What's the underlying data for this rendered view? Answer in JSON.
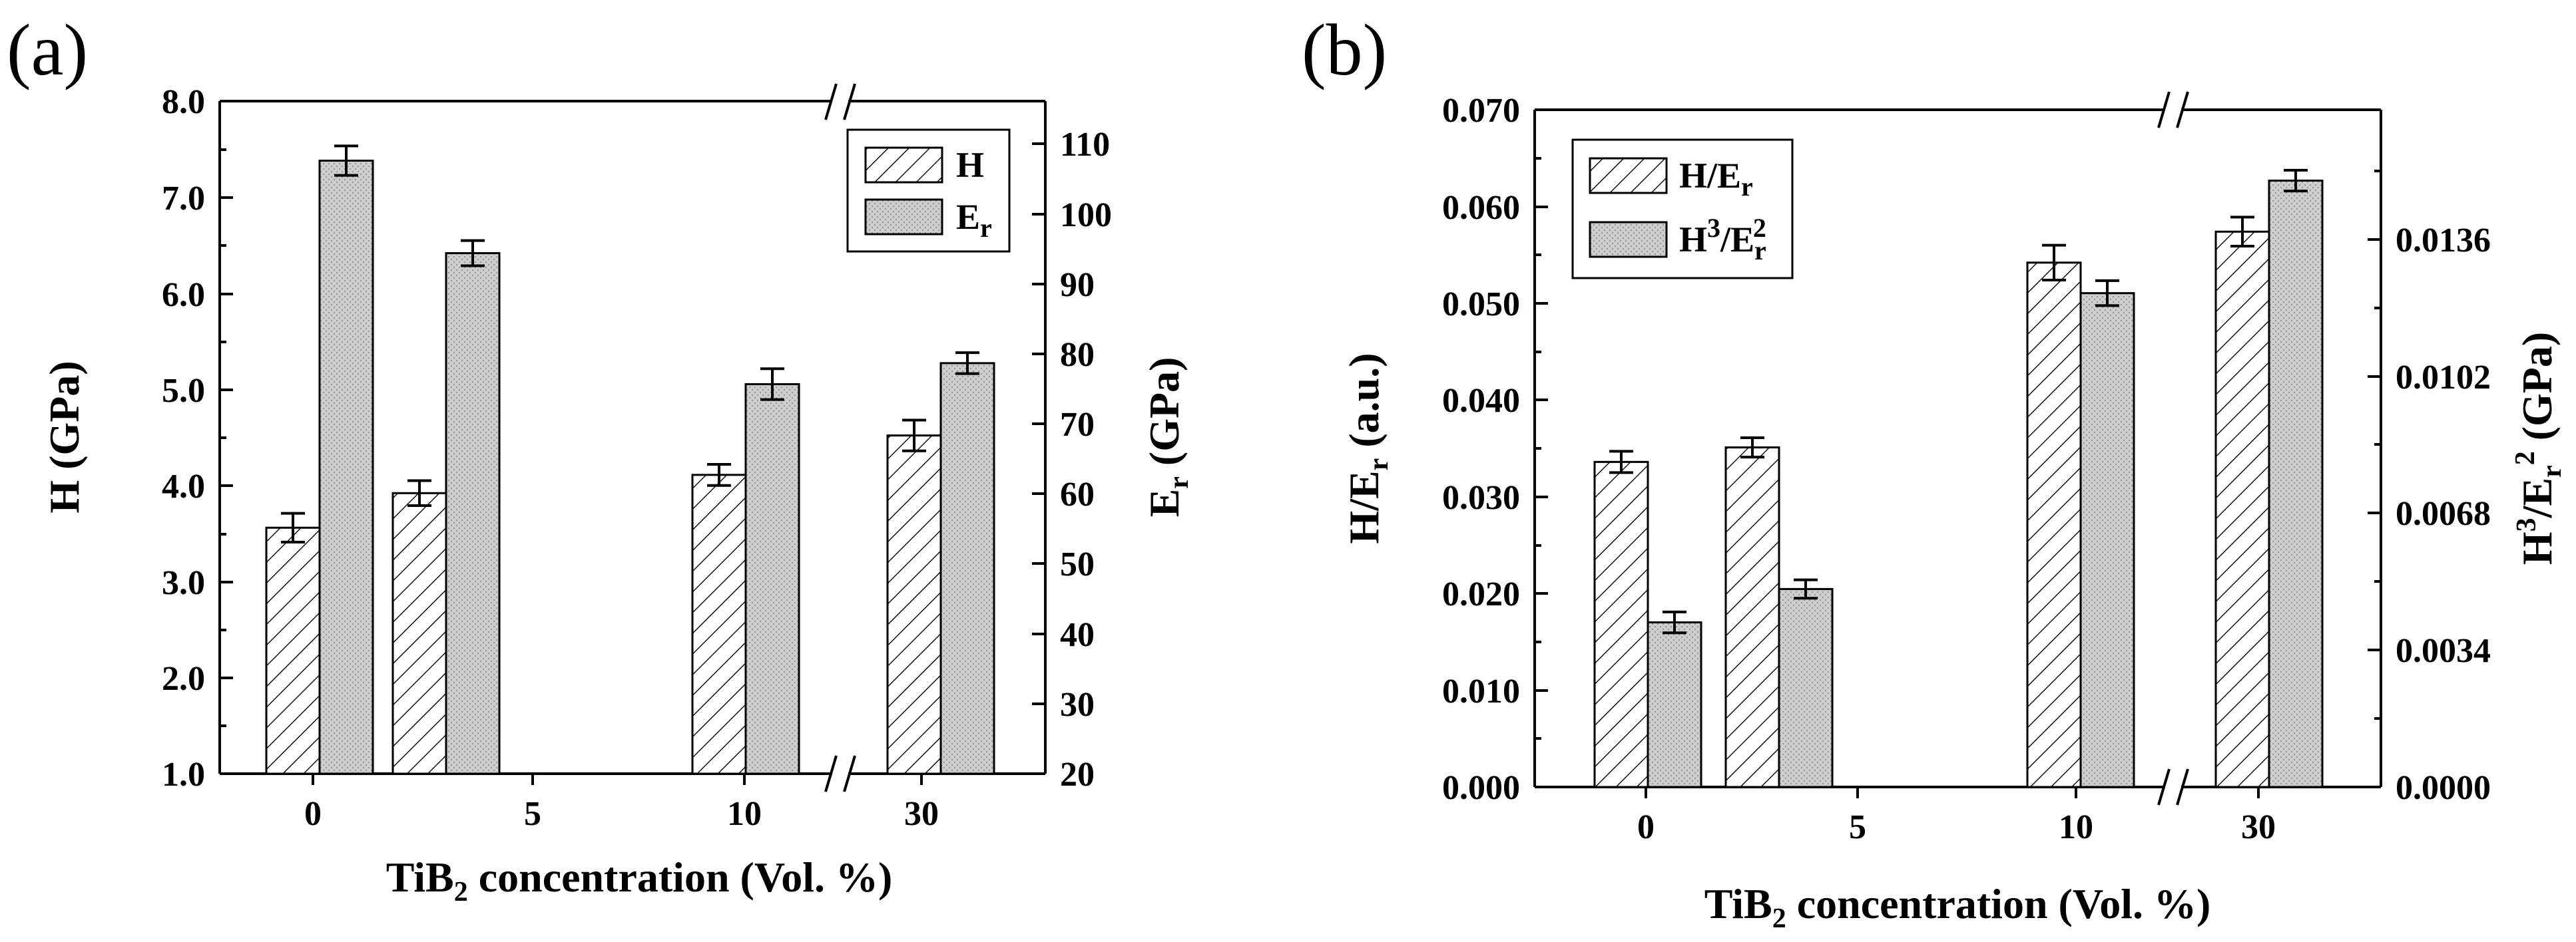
{
  "chart_data": [
    {
      "panel_label": "(a)",
      "type": "bar",
      "xlabel": {
        "main": "TiB",
        "sub": "2",
        "rest": " concentration (Vol. %)"
      },
      "x_ticks": [
        "0",
        "5",
        "10",
        "30"
      ],
      "y_left": {
        "label": "H (GPa)",
        "ticks": [
          "1.0",
          "2.0",
          "3.0",
          "4.0",
          "5.0",
          "6.0",
          "7.0",
          "8.0"
        ],
        "ylim": [
          1.0,
          8.0
        ]
      },
      "y_right": {
        "label_main": "E",
        "label_sub": "r",
        "label_rest": " (GPa)",
        "ticks": [
          "20",
          "30",
          "40",
          "50",
          "60",
          "70",
          "80",
          "90",
          "100",
          "110"
        ],
        "ylim": [
          20,
          116
        ]
      },
      "legend": [
        {
          "label": "H",
          "pattern": "hatch"
        },
        {
          "label_main": "E",
          "label_sub": "r",
          "pattern": "dots"
        }
      ],
      "series": [
        {
          "name": "H",
          "axis": "left",
          "categories": [
            "0",
            "5",
            "10",
            "30"
          ],
          "values": [
            3.56,
            3.92,
            4.11,
            4.52
          ],
          "errors": [
            0.15,
            0.13,
            0.11,
            0.16
          ]
        },
        {
          "name": "Er",
          "axis": "right",
          "categories": [
            "0",
            "5",
            "10",
            "30"
          ],
          "values": [
            107.5,
            94.3,
            75.6,
            78.6
          ],
          "errors": [
            2.1,
            1.8,
            2.2,
            1.5
          ]
        }
      ],
      "axis_break": "between 10 and 30"
    },
    {
      "panel_label": "(b)",
      "type": "bar",
      "xlabel": {
        "main": "TiB",
        "sub": "2",
        "rest": " concentration (Vol. %)"
      },
      "x_ticks": [
        "0",
        "5",
        "10",
        "30"
      ],
      "y_left": {
        "label_main": "H/E",
        "label_sub": "r",
        "label_rest": " (a.u.)",
        "ticks": [
          "0.000",
          "0.010",
          "0.020",
          "0.030",
          "0.040",
          "0.050",
          "0.060",
          "0.070"
        ],
        "ylim": [
          0.0,
          0.07
        ]
      },
      "y_right": {
        "label_h": "H",
        "label_sup3": "3",
        "label_e": "/E",
        "label_sub": "r",
        "label_sup2": "2",
        "label_rest": " (GPa)",
        "ticks": [
          "0.0000",
          "0.0034",
          "0.0068",
          "0.0102",
          "0.0136"
        ],
        "ylim": [
          0.0,
          0.01625
        ]
      },
      "legend": [
        {
          "label_main": "H/E",
          "label_sub": "r",
          "pattern": "hatch"
        },
        {
          "label_h": "H",
          "label_sup3": "3",
          "label_e": "/E",
          "label_sub": "r",
          "label_sup2": "2",
          "pattern": "dots"
        }
      ],
      "series": [
        {
          "name": "H/Er",
          "axis": "left",
          "categories": [
            "0",
            "5",
            "10",
            "30"
          ],
          "values": [
            0.0336,
            0.0351,
            0.0542,
            0.0574
          ],
          "errors": [
            0.0011,
            0.001,
            0.0018,
            0.0015
          ]
        },
        {
          "name": "H3/Er2",
          "axis": "right",
          "categories": [
            "0",
            "5",
            "10",
            "30"
          ],
          "values": [
            0.00395,
            0.00475,
            0.01185,
            0.01455
          ],
          "errors": [
            0.00025,
            0.00022,
            0.0003,
            0.00025
          ]
        }
      ],
      "axis_break": "between 10 and 30"
    }
  ]
}
